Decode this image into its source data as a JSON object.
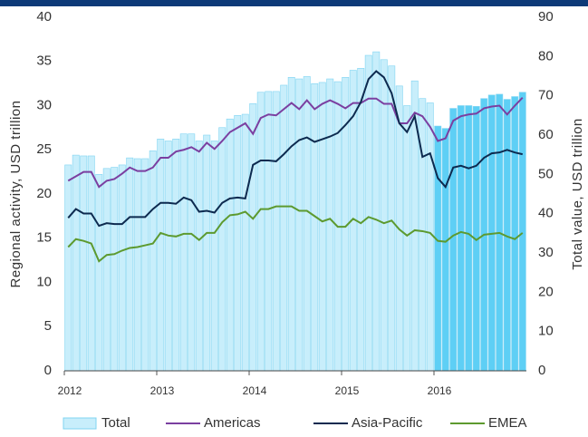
{
  "chart_data": {
    "type": "bar-line",
    "categories": [
      "2012",
      null,
      null,
      null,
      null,
      null,
      null,
      null,
      null,
      null,
      null,
      null,
      "2013",
      null,
      null,
      null,
      null,
      null,
      null,
      null,
      null,
      null,
      null,
      null,
      "2014",
      null,
      null,
      null,
      null,
      null,
      null,
      null,
      null,
      null,
      null,
      null,
      "2015",
      null,
      null,
      null,
      null,
      null,
      null,
      null,
      null,
      null,
      null,
      null,
      "2016",
      null,
      null,
      null,
      null,
      null,
      null,
      null,
      null,
      null,
      null,
      null
    ],
    "y_label": "Regional activity, USD trillion",
    "y2_label": "Total value, USD trillion",
    "ylim": [
      0,
      40
    ],
    "yticks": [
      0,
      5,
      10,
      15,
      20,
      25,
      30,
      35,
      40
    ],
    "y2lim": [
      0,
      90
    ],
    "y2ticks": [
      0,
      10,
      20,
      30,
      40,
      50,
      60,
      70,
      80,
      90
    ],
    "series": [
      {
        "name": "Total",
        "type": "bar",
        "axis": "y2",
        "color": "#c8eefb",
        "colors": [
          "#c8eefb",
          "#c8eefb",
          "#c8eefb",
          "#c8eefb",
          "#c8eefb",
          "#c8eefb",
          "#c8eefb",
          "#c8eefb",
          "#c8eefb",
          "#c8eefb",
          "#c8eefb",
          "#c8eefb",
          "#c8eefb",
          "#c8eefb",
          "#c8eefb",
          "#c8eefb",
          "#c8eefb",
          "#c8eefb",
          "#c8eefb",
          "#c8eefb",
          "#c8eefb",
          "#c8eefb",
          "#c8eefb",
          "#c8eefb",
          "#c8eefb",
          "#c8eefb",
          "#c8eefb",
          "#c8eefb",
          "#c8eefb",
          "#c8eefb",
          "#c8eefb",
          "#c8eefb",
          "#c8eefb",
          "#c8eefb",
          "#c8eefb",
          "#c8eefb",
          "#c8eefb",
          "#c8eefb",
          "#c8eefb",
          "#c8eefb",
          "#c8eefb",
          "#c8eefb",
          "#c8eefb",
          "#c8eefb",
          "#c8eefb",
          "#c8eefb",
          "#c8eefb",
          "#c8eefb",
          "#5ecff5",
          "#5ecff5",
          "#5ecff5",
          "#5ecff5",
          "#5ecff5",
          "#5ecff5",
          "#5ecff5",
          "#5ecff5",
          "#5ecff5",
          "#5ecff5",
          "#5ecff5",
          "#5ecff5"
        ],
        "values": [
          52.4,
          54.9,
          54.7,
          54.7,
          50,
          51.5,
          51.8,
          52.4,
          54.2,
          54,
          54,
          56,
          59,
          58.5,
          59,
          60.3,
          60.3,
          58.5,
          60,
          58.5,
          61.9,
          64.1,
          65,
          65.3,
          68,
          70.9,
          71.1,
          71.1,
          72.7,
          74.7,
          74.3,
          74.9,
          73.1,
          73.4,
          74.3,
          73.6,
          74.7,
          76.5,
          77,
          80.3,
          81.2,
          79.2,
          77.6,
          72.5,
          67.5,
          73.8,
          69.3,
          68.2,
          62.3,
          61.7,
          66.8,
          67.5,
          67.5,
          67.3,
          69.3,
          70.2,
          70.4,
          69.1,
          69.8,
          70.9
        ]
      },
      {
        "name": "Americas",
        "type": "line",
        "color": "#7b3fa0",
        "values": [
          21.5,
          22.0,
          22.5,
          22.5,
          20.8,
          21.5,
          21.7,
          22.3,
          23.0,
          22.6,
          22.6,
          23.0,
          24.1,
          24.1,
          24.8,
          25.0,
          25.3,
          24.8,
          25.8,
          25.1,
          26.0,
          27.0,
          27.5,
          28.0,
          26.8,
          28.6,
          29.0,
          28.9,
          29.6,
          30.3,
          29.6,
          30.6,
          29.6,
          30.2,
          30.6,
          30.2,
          29.7,
          30.3,
          30.3,
          30.8,
          30.8,
          30.2,
          30.2,
          28.0,
          28.0,
          29.2,
          28.8,
          27.6,
          26.0,
          26.3,
          28.3,
          28.8,
          29.0,
          29.1,
          29.7,
          29.9,
          30.0,
          29.0,
          30.0,
          30.9
        ]
      },
      {
        "name": "Asia-Pacific",
        "type": "line",
        "color": "#0d2a4f",
        "values": [
          17.3,
          18.3,
          17.8,
          17.8,
          16.4,
          16.7,
          16.6,
          16.6,
          17.4,
          17.4,
          17.4,
          18.3,
          19.0,
          19.0,
          18.9,
          19.6,
          19.3,
          18.0,
          18.1,
          17.9,
          19.0,
          19.5,
          19.6,
          19.5,
          23.3,
          23.8,
          23.8,
          23.7,
          24.5,
          25.4,
          26.1,
          26.4,
          25.9,
          26.2,
          26.5,
          26.9,
          27.8,
          28.8,
          30.4,
          33.0,
          33.9,
          33.2,
          31.4,
          28.0,
          27.0,
          28.8,
          24.2,
          24.6,
          21.8,
          20.8,
          23.0,
          23.2,
          22.9,
          23.2,
          24.1,
          24.6,
          24.7,
          25.0,
          24.7,
          24.5
        ]
      },
      {
        "name": "EMEA",
        "type": "line",
        "color": "#5d9a2f",
        "values": [
          14.0,
          14.9,
          14.7,
          14.4,
          12.4,
          13.1,
          13.2,
          13.6,
          13.9,
          14.0,
          14.2,
          14.4,
          15.6,
          15.3,
          15.2,
          15.5,
          15.5,
          14.8,
          15.6,
          15.6,
          16.8,
          17.6,
          17.7,
          18.0,
          17.2,
          18.3,
          18.3,
          18.6,
          18.6,
          18.6,
          18.1,
          18.1,
          17.5,
          16.9,
          17.2,
          16.3,
          16.3,
          17.2,
          16.7,
          17.4,
          17.1,
          16.7,
          17.0,
          16.0,
          15.3,
          15.9,
          15.8,
          15.6,
          14.7,
          14.6,
          15.3,
          15.7,
          15.5,
          14.8,
          15.4,
          15.5,
          15.6,
          15.2,
          14.9,
          15.6
        ]
      }
    ]
  }
}
